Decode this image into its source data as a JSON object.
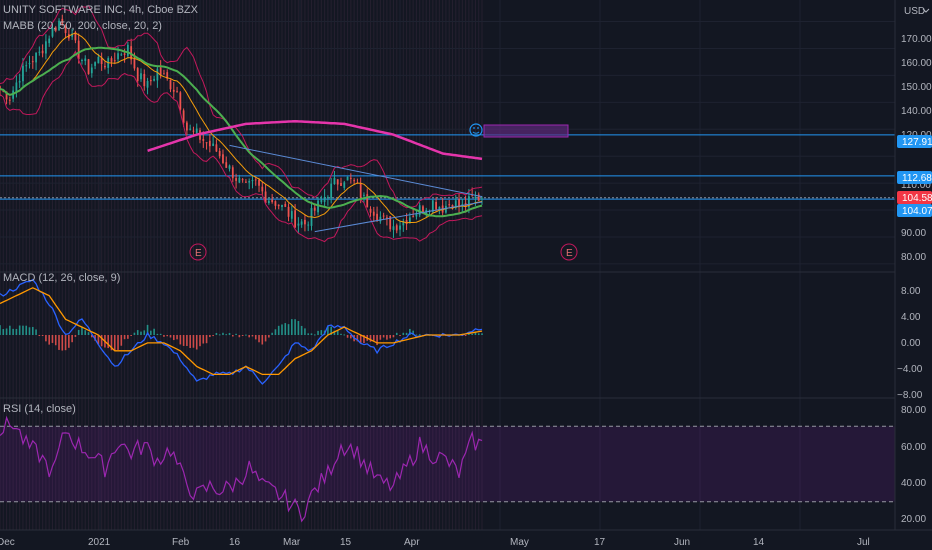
{
  "header": {
    "title": "UNITY SOFTWARE INC, 4h, Cboe BZX",
    "currency": "USD"
  },
  "colors": {
    "background": "#131722",
    "grid": "#1e2230",
    "candle_up": "#26a69a",
    "candle_down": "#ef5350",
    "ma20": "#f59d0b",
    "ma50": "#4caf50",
    "ma200": "#e535ab",
    "bollinger": "#c2185b",
    "macd_line": "#2962ff",
    "signal_line": "#ff9800",
    "rsi_line": "#9c27b0",
    "hline": "#2196f3",
    "price_tag_red": "#f23645",
    "price_tag_blue": "#2196f3"
  },
  "icons": {
    "emoji": "smiley-icon",
    "earnings_marker": "earnings-icon"
  },
  "price_pane": {
    "indicator_label": "MABB (20, 50, 200, close, 20, 2)",
    "y_ticks": [
      "170.00",
      "160.00",
      "150.00",
      "140.00",
      "120.00",
      "110.00",
      "90.00",
      "80.00"
    ],
    "tags": [
      {
        "text": "127.91",
        "color": "#2196f3"
      },
      {
        "text": "112.68",
        "color": "#2196f3"
      },
      {
        "text": "104.58",
        "color": "#f23645"
      },
      {
        "text": "104.07",
        "color": "#2196f3"
      }
    ],
    "earnings_markers": [
      "E",
      "E"
    ]
  },
  "macd_pane": {
    "label": "MACD (12, 26, close, 9)",
    "y_ticks": [
      "8.00",
      "4.00",
      "0.00",
      "−4.00",
      "−8.00"
    ]
  },
  "rsi_pane": {
    "label": "RSI (14, close)",
    "y_ticks": [
      "80.00",
      "60.00",
      "40.00",
      "20.00"
    ]
  },
  "x_axis": {
    "ticks": [
      "Dec",
      "2021",
      "Feb",
      "16",
      "Mar",
      "15",
      "Apr",
      "May",
      "17",
      "Jun",
      "14",
      "Jul"
    ]
  },
  "chart_data": [
    {
      "type": "candlestick",
      "title": "UNITY SOFTWARE INC, 4h, Cboe BZX",
      "ylabel": "USD",
      "ylim": [
        77,
        178
      ],
      "x_ticks": [
        "Dec",
        "2021",
        "Feb",
        "16",
        "Mar",
        "15",
        "Apr",
        "May",
        "17",
        "Jun",
        "14",
        "Jul"
      ],
      "close_path": [
        [
          0,
          145
        ],
        [
          3,
          142
        ],
        [
          6,
          150
        ],
        [
          9,
          155
        ],
        [
          12,
          158
        ],
        [
          15,
          165
        ],
        [
          18,
          170
        ],
        [
          21,
          166
        ],
        [
          24,
          158
        ],
        [
          27,
          152
        ],
        [
          30,
          156
        ],
        [
          33,
          154
        ],
        [
          36,
          158
        ],
        [
          39,
          160
        ],
        [
          42,
          150
        ],
        [
          45,
          146
        ],
        [
          48,
          152
        ],
        [
          51,
          148
        ],
        [
          54,
          144
        ],
        [
          57,
          130
        ],
        [
          60,
          128
        ],
        [
          63,
          125
        ],
        [
          66,
          122
        ],
        [
          69,
          117
        ],
        [
          72,
          112
        ],
        [
          75,
          108
        ],
        [
          78,
          110
        ],
        [
          81,
          105
        ],
        [
          84,
          103
        ],
        [
          87,
          100
        ],
        [
          90,
          96
        ],
        [
          93,
          95
        ],
        [
          96,
          100
        ],
        [
          99,
          105
        ],
        [
          102,
          110
        ],
        [
          105,
          112
        ],
        [
          108,
          110
        ],
        [
          111,
          104
        ],
        [
          114,
          100
        ],
        [
          117,
          96
        ],
        [
          120,
          94
        ],
        [
          123,
          96
        ],
        [
          126,
          99
        ],
        [
          129,
          101
        ],
        [
          132,
          103
        ],
        [
          135,
          101
        ],
        [
          138,
          103
        ],
        [
          141,
          101
        ],
        [
          144,
          104
        ],
        [
          147,
          105
        ]
      ],
      "ma200_path": [
        [
          45,
          122
        ],
        [
          60,
          128
        ],
        [
          75,
          132
        ],
        [
          90,
          133
        ],
        [
          105,
          132
        ],
        [
          120,
          128
        ],
        [
          135,
          121
        ],
        [
          147,
          119
        ]
      ],
      "horizontal_levels": [
        127.91,
        112.68,
        104.58,
        104.07
      ],
      "last_price": 104.58,
      "earnings_marker_x": [
        59,
        173
      ],
      "series": [
        {
          "name": "MABB (20, 50, 200, close, 20, 2)",
          "role": "moving averages and bollinger bands"
        }
      ]
    },
    {
      "type": "line",
      "title": "MACD (12, 26, close, 9)",
      "ylim": [
        -8,
        8
      ],
      "y_ticks": [
        8,
        4,
        0,
        -4,
        -8
      ],
      "macd_path": [
        [
          0,
          5
        ],
        [
          5,
          6
        ],
        [
          10,
          7
        ],
        [
          15,
          4
        ],
        [
          20,
          0
        ],
        [
          25,
          2
        ],
        [
          30,
          -1
        ],
        [
          35,
          -4
        ],
        [
          40,
          -2
        ],
        [
          45,
          0
        ],
        [
          50,
          -1
        ],
        [
          55,
          -3
        ],
        [
          60,
          -6
        ],
        [
          65,
          -5
        ],
        [
          70,
          -5
        ],
        [
          75,
          -4
        ],
        [
          80,
          -6
        ],
        [
          85,
          -4
        ],
        [
          90,
          -1
        ],
        [
          95,
          -2
        ],
        [
          100,
          1
        ],
        [
          105,
          1
        ],
        [
          110,
          -1
        ],
        [
          115,
          -2
        ],
        [
          120,
          -1
        ],
        [
          125,
          0
        ],
        [
          130,
          0
        ],
        [
          135,
          0
        ],
        [
          140,
          0
        ],
        [
          147,
          1
        ]
      ],
      "signal_path": [
        [
          0,
          4
        ],
        [
          5,
          5
        ],
        [
          10,
          6
        ],
        [
          15,
          5
        ],
        [
          20,
          2
        ],
        [
          25,
          1
        ],
        [
          30,
          0
        ],
        [
          35,
          -2
        ],
        [
          40,
          -2
        ],
        [
          45,
          -1
        ],
        [
          50,
          -1
        ],
        [
          55,
          -2
        ],
        [
          60,
          -4
        ],
        [
          65,
          -5
        ],
        [
          70,
          -5
        ],
        [
          75,
          -4
        ],
        [
          80,
          -5
        ],
        [
          85,
          -5
        ],
        [
          90,
          -3
        ],
        [
          95,
          -2
        ],
        [
          100,
          0
        ],
        [
          105,
          1
        ],
        [
          110,
          0
        ],
        [
          115,
          -1
        ],
        [
          120,
          -1
        ],
        [
          125,
          -0.5
        ],
        [
          130,
          0
        ],
        [
          135,
          0
        ],
        [
          140,
          0
        ],
        [
          147,
          0.5
        ]
      ]
    },
    {
      "type": "line",
      "title": "RSI (14, close)",
      "ylim": [
        15,
        85
      ],
      "y_ticks": [
        80,
        60,
        40,
        20
      ],
      "bands": [
        70,
        30
      ],
      "rsi_path": [
        [
          0,
          68
        ],
        [
          4,
          72
        ],
        [
          8,
          60
        ],
        [
          12,
          55
        ],
        [
          16,
          45
        ],
        [
          20,
          68
        ],
        [
          24,
          60
        ],
        [
          28,
          55
        ],
        [
          32,
          48
        ],
        [
          36,
          62
        ],
        [
          40,
          56
        ],
        [
          44,
          60
        ],
        [
          48,
          52
        ],
        [
          52,
          58
        ],
        [
          56,
          42
        ],
        [
          60,
          33
        ],
        [
          64,
          38
        ],
        [
          68,
          36
        ],
        [
          72,
          40
        ],
        [
          76,
          48
        ],
        [
          80,
          38
        ],
        [
          84,
          35
        ],
        [
          88,
          30
        ],
        [
          92,
          24
        ],
        [
          96,
          36
        ],
        [
          100,
          45
        ],
        [
          104,
          60
        ],
        [
          108,
          58
        ],
        [
          112,
          48
        ],
        [
          116,
          40
        ],
        [
          120,
          38
        ],
        [
          124,
          48
        ],
        [
          128,
          60
        ],
        [
          132,
          55
        ],
        [
          136,
          52
        ],
        [
          140,
          45
        ],
        [
          144,
          62
        ],
        [
          147,
          60
        ]
      ]
    }
  ]
}
